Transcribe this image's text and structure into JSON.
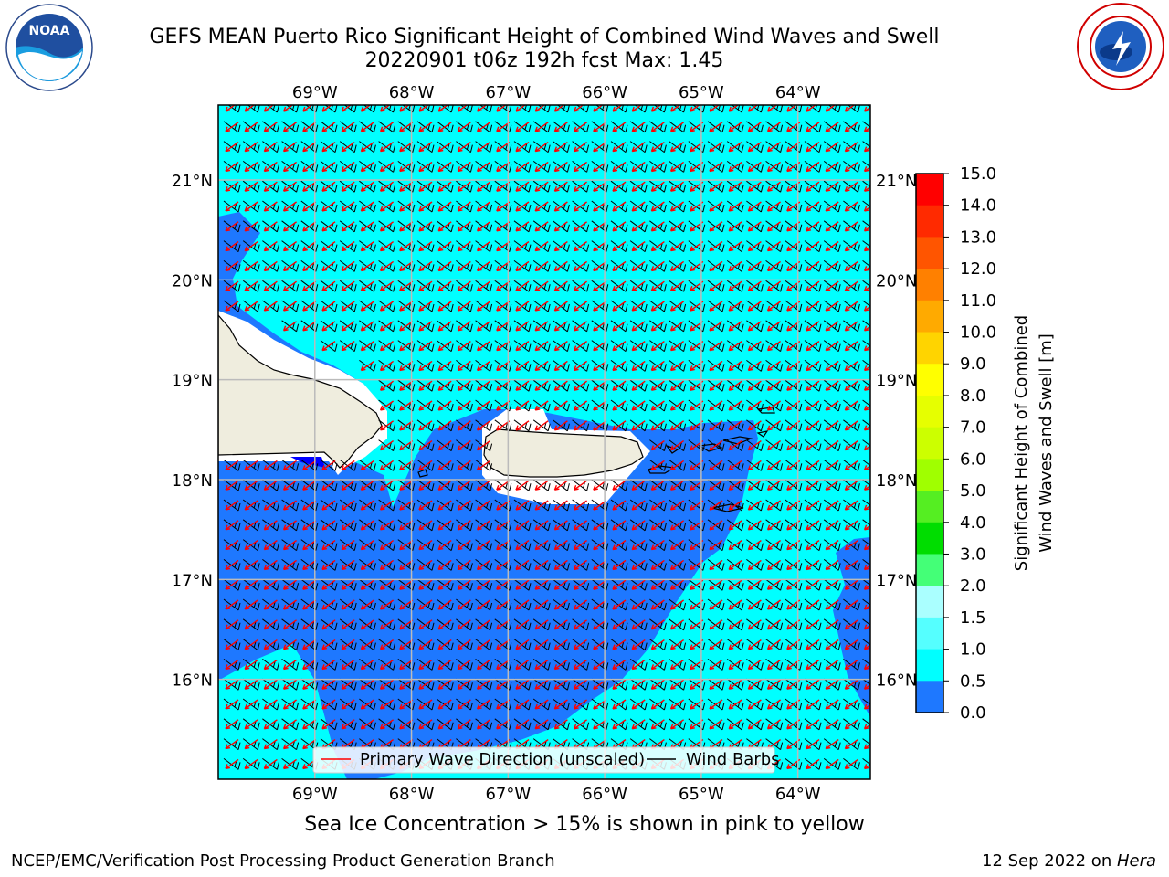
{
  "header": {
    "title_line1": "GEFS MEAN Puerto Rico Significant Height of Combined Wind Waves and Swell",
    "title_line2": "20220901 t06z 192h fcst   Max: 1.45"
  },
  "logos": {
    "left": {
      "icon": "noaa-logo-icon",
      "text": "NOAA"
    },
    "right": {
      "icon": "nws-logo-icon"
    }
  },
  "map": {
    "lon_labels": [
      "69°W",
      "68°W",
      "67°W",
      "66°W",
      "65°W",
      "64°W"
    ],
    "lat_labels": [
      "21°N",
      "20°N",
      "19°N",
      "18°N",
      "17°N",
      "16°N"
    ],
    "lon_values": [
      -69,
      -68,
      -67,
      -66,
      -65,
      -64
    ],
    "lat_values": [
      21,
      20,
      19,
      18,
      17,
      16
    ],
    "lon_range": [
      -70.0,
      -63.25
    ],
    "lat_range": [
      15.0,
      21.75
    ],
    "grid": true,
    "colors": {
      "ocean_fill": "#00ffff",
      "band_0_5_1_0": "#1e78ff",
      "land": "#efedde",
      "no_data": "#ffffff",
      "wave_arrow": "#ff0000",
      "wind_barb": "#000000"
    },
    "legend": {
      "position": "bottom-center",
      "items": [
        {
          "label": "Primary Wave Direction (unscaled)",
          "color": "#ff0000"
        },
        {
          "label": "Wind Barbs",
          "color": "#000000"
        }
      ]
    }
  },
  "colorbar": {
    "title_line1": "Significant Height of Combined",
    "title_line2": "Wind Waves and Swell [m]",
    "ticks": [
      "15.0",
      "14.0",
      "13.0",
      "12.0",
      "11.0",
      "10.0",
      "9.0",
      "8.0",
      "7.0",
      "6.0",
      "5.0",
      "4.0",
      "3.0",
      "2.0",
      "1.5",
      "1.0",
      "0.5",
      "0.0"
    ],
    "colors": [
      "#ff0000",
      "#ff2a00",
      "#ff5500",
      "#ff8000",
      "#ffaa00",
      "#ffd400",
      "#ffff00",
      "#e6ff00",
      "#ccff00",
      "#a0ff00",
      "#55ee22",
      "#00dd00",
      "#44ff77",
      "#aaffff",
      "#55ffff",
      "#00ffff",
      "#1e78ff",
      "#0000ff"
    ]
  },
  "notes": {
    "ice": "Sea Ice Concentration > 15% is shown in pink to yellow"
  },
  "footer": {
    "left": "NCEP/EMC/Verification Post Processing Product Generation Branch",
    "right_prefix": "12 Sep 2022 on ",
    "right_host": "Hera"
  }
}
